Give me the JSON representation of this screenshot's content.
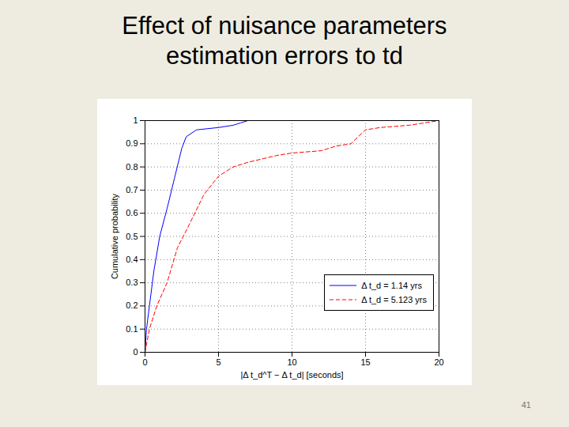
{
  "chart_data": {
    "type": "line",
    "title": "Effect of nuisance parameters estimation errors to td",
    "x_label": "|Δ t_d^T − Δ t_d| [seconds]",
    "y_label": "Cumulative probability",
    "xlim": [
      0,
      20
    ],
    "xticks": [
      0,
      5,
      10,
      15,
      20
    ],
    "ylim": [
      0,
      1
    ],
    "yticks": [
      0,
      0.1,
      0.2,
      0.3,
      0.4,
      0.5,
      0.6,
      0.7,
      0.8,
      0.9,
      1
    ],
    "grid": true,
    "legend": "lower right",
    "series": [
      {
        "name": "Δ t_d = 1.14 yrs",
        "color": "#0000ff",
        "line_style": "solid",
        "x": [
          0,
          0.1,
          0.3,
          0.6,
          1,
          1.5,
          2,
          2.5,
          2.8,
          3.5,
          5,
          6,
          6.5,
          7,
          20
        ],
        "values": [
          0,
          0.1,
          0.2,
          0.35,
          0.5,
          0.62,
          0.75,
          0.88,
          0.93,
          0.96,
          0.97,
          0.98,
          0.99,
          1,
          1
        ]
      },
      {
        "name": "Δ t_d = 5.123 yrs",
        "color": "#ff0000",
        "line_style": "dashed",
        "x": [
          0,
          0.3,
          0.8,
          1.5,
          2.2,
          3,
          4,
          5,
          6,
          7,
          9,
          10,
          12,
          13,
          14,
          14.5,
          15,
          16,
          18,
          19,
          20
        ],
        "values": [
          0,
          0.1,
          0.2,
          0.3,
          0.45,
          0.55,
          0.68,
          0.76,
          0.8,
          0.82,
          0.85,
          0.86,
          0.87,
          0.89,
          0.9,
          0.93,
          0.96,
          0.97,
          0.98,
          0.99,
          1
        ]
      }
    ]
  },
  "page_number": "41"
}
